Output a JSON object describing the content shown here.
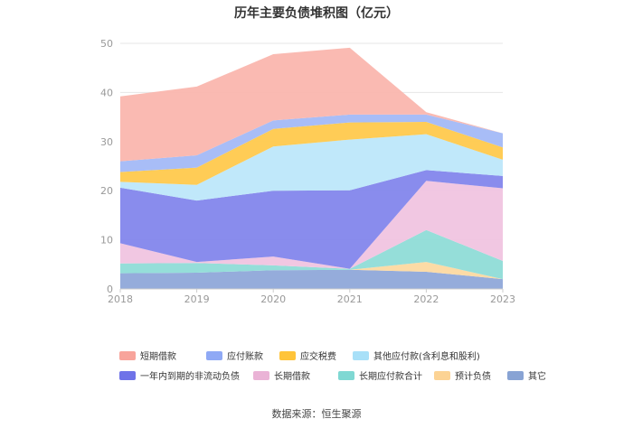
{
  "title": "历年主要负债堆积图（亿元）",
  "source": "数据来源：恒生聚源",
  "chart_data": {
    "type": "area",
    "stacked": true,
    "x": [
      "2018",
      "2019",
      "2020",
      "2021",
      "2022",
      "2023"
    ],
    "ylim": [
      0,
      50
    ],
    "yticks": [
      "0",
      "10",
      "20",
      "30",
      "40",
      "50"
    ],
    "grid": true,
    "legend_position": "bottom",
    "series": [
      {
        "name": "其它",
        "color": "#8fa8d9",
        "values": [
          3.2,
          3.3,
          3.8,
          3.9,
          3.5,
          2.0
        ]
      },
      {
        "name": "预计负债",
        "color": "#fcd9a1",
        "values": [
          0.0,
          0.0,
          0.0,
          0.0,
          2.0,
          0.0
        ]
      },
      {
        "name": "长期应付款合计",
        "color": "#8fdcd7",
        "values": [
          2.0,
          2.0,
          1.0,
          0.2,
          6.5,
          3.7
        ]
      },
      {
        "name": "长期借款",
        "color": "#f0c4e0",
        "values": [
          4.1,
          0.2,
          1.8,
          0.0,
          10.0,
          14.8
        ]
      },
      {
        "name": "一年内到期的非流动负债",
        "color": "#8386ec",
        "values": [
          11.3,
          12.5,
          13.4,
          16.0,
          2.2,
          2.5
        ]
      },
      {
        "name": "其他应付款(含利息和股利)",
        "color": "#bde7fa",
        "values": [
          1.2,
          3.2,
          9.0,
          10.3,
          7.3,
          3.3
        ]
      },
      {
        "name": "应交税费",
        "color": "#ffc94d",
        "values": [
          2.0,
          3.5,
          3.6,
          3.5,
          2.5,
          2.5
        ]
      },
      {
        "name": "应付账款",
        "color": "#a3b9f7",
        "values": [
          2.2,
          2.5,
          1.7,
          1.6,
          1.5,
          2.9
        ]
      },
      {
        "name": "短期借款",
        "color": "#fab6ae",
        "values": [
          13.2,
          14.0,
          13.5,
          13.6,
          0.5,
          0.0
        ]
      }
    ]
  },
  "legend": [
    {
      "name": "短期借款",
      "color": "#f8a49b"
    },
    {
      "name": "应付账款",
      "color": "#8fa9f5"
    },
    {
      "name": "应交税费",
      "color": "#ffc43a"
    },
    {
      "name": "其他应付款(含利息和股利)",
      "color": "#a8e0f8"
    },
    {
      "name": "一年内到期的非流动负债",
      "color": "#6f73e8"
    },
    {
      "name": "长期借款",
      "color": "#eab3d6"
    },
    {
      "name": "长期应付款合计",
      "color": "#7fd8d3"
    },
    {
      "name": "预计负债",
      "color": "#fcd394"
    },
    {
      "name": "其它",
      "color": "#88a3d4"
    }
  ]
}
